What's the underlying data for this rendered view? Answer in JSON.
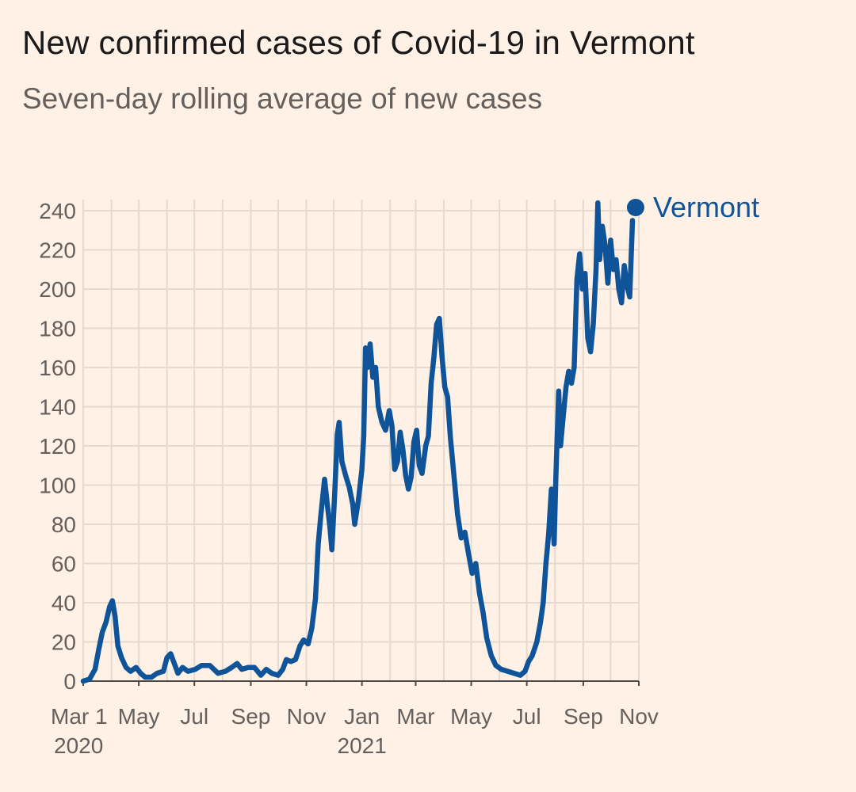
{
  "title": "New confirmed cases of Covid-19 in Vermont",
  "subtitle": "Seven-day rolling average of new cases",
  "colors": {
    "background": "#fff1e6",
    "series": "#0f5499",
    "grid": "#e6d9ce",
    "axis": "#4d4845",
    "text": "#66605c"
  },
  "chart_data": {
    "type": "line",
    "title": "New confirmed cases of Covid-19 in Vermont",
    "subtitle": "Seven-day rolling average of new cases",
    "ylim": [
      0,
      240
    ],
    "yticks": [
      0,
      20,
      40,
      60,
      80,
      100,
      120,
      140,
      160,
      180,
      200,
      220,
      240
    ],
    "xlim": [
      "2020-03-01",
      "2021-11-01"
    ],
    "xticks": [
      {
        "date": "2020-03-01",
        "label": "Mar 1",
        "sub": "2020"
      },
      {
        "date": "2020-05-01",
        "label": "May",
        "sub": ""
      },
      {
        "date": "2020-07-01",
        "label": "Jul",
        "sub": ""
      },
      {
        "date": "2020-09-01",
        "label": "Sep",
        "sub": ""
      },
      {
        "date": "2020-11-01",
        "label": "Nov",
        "sub": ""
      },
      {
        "date": "2021-01-01",
        "label": "Jan",
        "sub": "2021"
      },
      {
        "date": "2021-03-01",
        "label": "Mar",
        "sub": ""
      },
      {
        "date": "2021-05-01",
        "label": "May",
        "sub": ""
      },
      {
        "date": "2021-07-01",
        "label": "Jul",
        "sub": ""
      },
      {
        "date": "2021-09-01",
        "label": "Sep",
        "sub": ""
      },
      {
        "date": "2021-11-01",
        "label": "Nov",
        "sub": ""
      }
    ],
    "grid": true,
    "legend": "end-of-line label",
    "series": [
      {
        "name": "Vermont",
        "color": "#0f5499",
        "points": [
          [
            "2020-03-01",
            0
          ],
          [
            "2020-03-08",
            1
          ],
          [
            "2020-03-14",
            6
          ],
          [
            "2020-03-18",
            16
          ],
          [
            "2020-03-22",
            25
          ],
          [
            "2020-03-26",
            30
          ],
          [
            "2020-03-30",
            38
          ],
          [
            "2020-04-02",
            41
          ],
          [
            "2020-04-05",
            33
          ],
          [
            "2020-04-08",
            18
          ],
          [
            "2020-04-12",
            12
          ],
          [
            "2020-04-17",
            7
          ],
          [
            "2020-04-22",
            5
          ],
          [
            "2020-04-28",
            7
          ],
          [
            "2020-05-03",
            4
          ],
          [
            "2020-05-08",
            2
          ],
          [
            "2020-05-15",
            2
          ],
          [
            "2020-05-21",
            4
          ],
          [
            "2020-05-28",
            5
          ],
          [
            "2020-06-01",
            12
          ],
          [
            "2020-06-05",
            14
          ],
          [
            "2020-06-09",
            9
          ],
          [
            "2020-06-13",
            4
          ],
          [
            "2020-06-18",
            7
          ],
          [
            "2020-06-24",
            5
          ],
          [
            "2020-07-02",
            6
          ],
          [
            "2020-07-09",
            8
          ],
          [
            "2020-07-18",
            8
          ],
          [
            "2020-07-27",
            4
          ],
          [
            "2020-08-04",
            5
          ],
          [
            "2020-08-11",
            7
          ],
          [
            "2020-08-17",
            9
          ],
          [
            "2020-08-22",
            6
          ],
          [
            "2020-08-29",
            7
          ],
          [
            "2020-09-05",
            7
          ],
          [
            "2020-09-12",
            3
          ],
          [
            "2020-09-18",
            6
          ],
          [
            "2020-09-24",
            4
          ],
          [
            "2020-10-01",
            3
          ],
          [
            "2020-10-06",
            6
          ],
          [
            "2020-10-10",
            11
          ],
          [
            "2020-10-15",
            10
          ],
          [
            "2020-10-20",
            11
          ],
          [
            "2020-10-25",
            18
          ],
          [
            "2020-10-29",
            21
          ],
          [
            "2020-11-03",
            19
          ],
          [
            "2020-11-07",
            27
          ],
          [
            "2020-11-11",
            42
          ],
          [
            "2020-11-14",
            70
          ],
          [
            "2020-11-17",
            85
          ],
          [
            "2020-11-21",
            103
          ],
          [
            "2020-11-24",
            90
          ],
          [
            "2020-11-27",
            78
          ],
          [
            "2020-11-29",
            67
          ],
          [
            "2020-12-02",
            95
          ],
          [
            "2020-12-05",
            126
          ],
          [
            "2020-12-07",
            132
          ],
          [
            "2020-12-10",
            112
          ],
          [
            "2020-12-14",
            105
          ],
          [
            "2020-12-18",
            99
          ],
          [
            "2020-12-22",
            90
          ],
          [
            "2020-12-24",
            80
          ],
          [
            "2020-12-28",
            92
          ],
          [
            "2021-01-01",
            108
          ],
          [
            "2021-01-03",
            125
          ],
          [
            "2021-01-05",
            170
          ],
          [
            "2021-01-07",
            160
          ],
          [
            "2021-01-10",
            172
          ],
          [
            "2021-01-13",
            155
          ],
          [
            "2021-01-16",
            160
          ],
          [
            "2021-01-19",
            140
          ],
          [
            "2021-01-23",
            132
          ],
          [
            "2021-01-27",
            128
          ],
          [
            "2021-01-31",
            138
          ],
          [
            "2021-02-03",
            130
          ],
          [
            "2021-02-06",
            108
          ],
          [
            "2021-02-09",
            112
          ],
          [
            "2021-02-12",
            127
          ],
          [
            "2021-02-15",
            118
          ],
          [
            "2021-02-18",
            105
          ],
          [
            "2021-02-21",
            98
          ],
          [
            "2021-02-24",
            104
          ],
          [
            "2021-02-27",
            122
          ],
          [
            "2021-03-02",
            128
          ],
          [
            "2021-03-05",
            110
          ],
          [
            "2021-03-08",
            106
          ],
          [
            "2021-03-12",
            120
          ],
          [
            "2021-03-15",
            125
          ],
          [
            "2021-03-18",
            152
          ],
          [
            "2021-03-21",
            165
          ],
          [
            "2021-03-24",
            182
          ],
          [
            "2021-03-27",
            185
          ],
          [
            "2021-03-30",
            165
          ],
          [
            "2021-04-02",
            150
          ],
          [
            "2021-04-05",
            145
          ],
          [
            "2021-04-08",
            125
          ],
          [
            "2021-04-12",
            105
          ],
          [
            "2021-04-16",
            85
          ],
          [
            "2021-04-20",
            73
          ],
          [
            "2021-04-24",
            76
          ],
          [
            "2021-04-28",
            65
          ],
          [
            "2021-05-02",
            55
          ],
          [
            "2021-05-06",
            60
          ],
          [
            "2021-05-10",
            45
          ],
          [
            "2021-05-14",
            35
          ],
          [
            "2021-05-18",
            22
          ],
          [
            "2021-05-23",
            13
          ],
          [
            "2021-05-28",
            8
          ],
          [
            "2021-06-03",
            6
          ],
          [
            "2021-06-10",
            5
          ],
          [
            "2021-06-17",
            4
          ],
          [
            "2021-06-24",
            3
          ],
          [
            "2021-06-29",
            5
          ],
          [
            "2021-07-03",
            10
          ],
          [
            "2021-07-07",
            13
          ],
          [
            "2021-07-12",
            20
          ],
          [
            "2021-07-16",
            30
          ],
          [
            "2021-07-19",
            40
          ],
          [
            "2021-07-22",
            60
          ],
          [
            "2021-07-25",
            75
          ],
          [
            "2021-07-28",
            98
          ],
          [
            "2021-07-31",
            70
          ],
          [
            "2021-08-02",
            105
          ],
          [
            "2021-08-05",
            148
          ],
          [
            "2021-08-07",
            120
          ],
          [
            "2021-08-10",
            135
          ],
          [
            "2021-08-13",
            150
          ],
          [
            "2021-08-16",
            158
          ],
          [
            "2021-08-19",
            152
          ],
          [
            "2021-08-22",
            160
          ],
          [
            "2021-08-25",
            205
          ],
          [
            "2021-08-28",
            218
          ],
          [
            "2021-08-31",
            200
          ],
          [
            "2021-09-03",
            208
          ],
          [
            "2021-09-06",
            175
          ],
          [
            "2021-09-09",
            168
          ],
          [
            "2021-09-12",
            182
          ],
          [
            "2021-09-15",
            210
          ],
          [
            "2021-09-17",
            244
          ],
          [
            "2021-09-19",
            215
          ],
          [
            "2021-09-22",
            232
          ],
          [
            "2021-09-25",
            222
          ],
          [
            "2021-09-28",
            203
          ],
          [
            "2021-10-01",
            225
          ],
          [
            "2021-10-04",
            210
          ],
          [
            "2021-10-07",
            215
          ],
          [
            "2021-10-10",
            200
          ],
          [
            "2021-10-13",
            193
          ],
          [
            "2021-10-16",
            212
          ],
          [
            "2021-10-19",
            202
          ],
          [
            "2021-10-22",
            196
          ],
          [
            "2021-10-25",
            235
          ]
        ]
      }
    ]
  }
}
